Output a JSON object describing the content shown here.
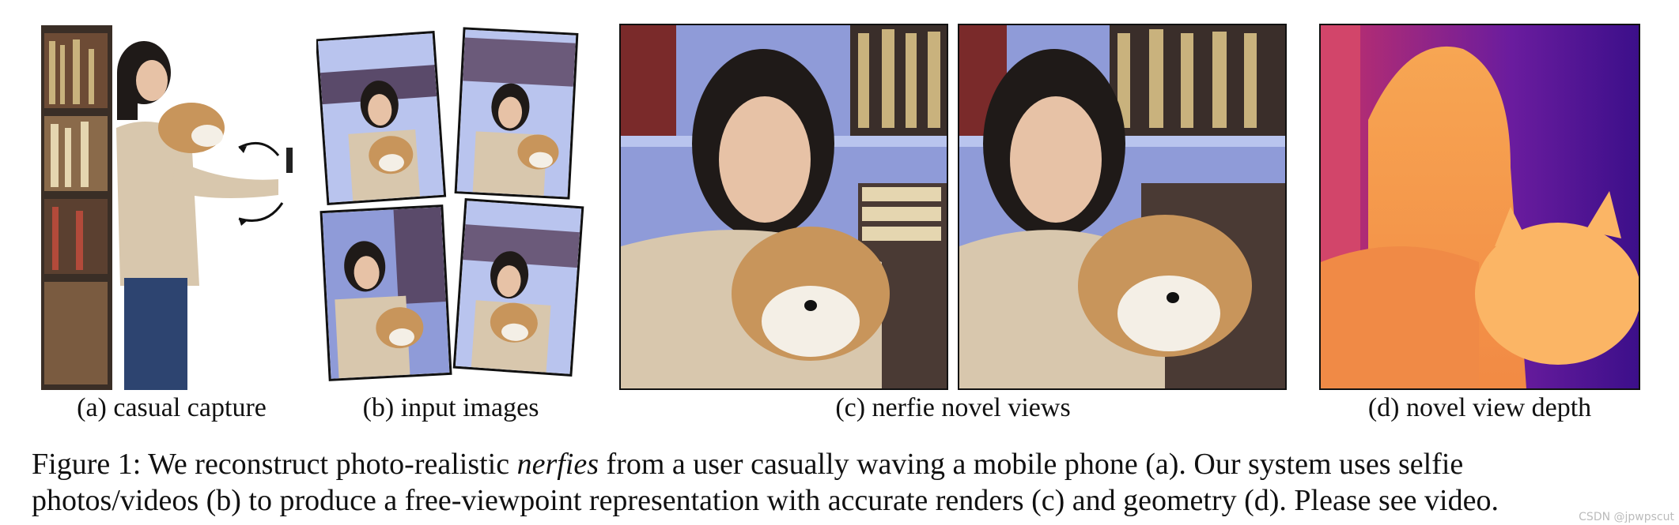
{
  "panels": {
    "a": {
      "caption": "(a) casual capture"
    },
    "b": {
      "caption": "(b) input images"
    },
    "c": {
      "caption": "(c) nerfie novel views"
    },
    "d": {
      "caption": "(d) novel view depth"
    }
  },
  "figure_caption": {
    "label": "Figure 1:",
    "line1_pre": "We reconstruct photo-realistic ",
    "line1_em": "nerfies",
    "line1_post": " from a user casually waving a mobile phone (a). Our system uses selfie",
    "line2": "photos/videos (b) to produce a free-viewpoint representation with accurate renders (c) and geometry (d). Please see video."
  },
  "watermark": "CSDN @jpwpscut",
  "colors": {
    "wall": "#8f9bd8",
    "shelf": "#b9c4ee",
    "sweater": "#d8c7ad",
    "hair": "#1f1a18",
    "skin": "#e7c2a6",
    "plush": "#c8955b",
    "plush_white": "#f4efe6",
    "depth_bg": "#5a1aa0",
    "depth_fg": "#f59a4c"
  }
}
